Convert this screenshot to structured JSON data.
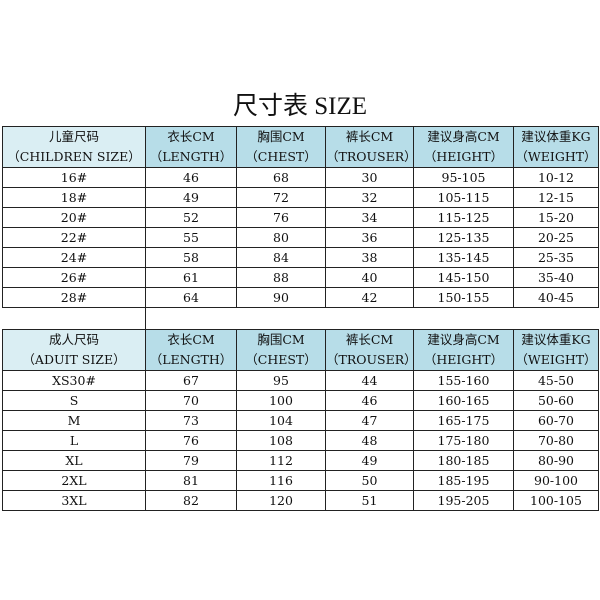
{
  "title": "尺寸表 SIZE",
  "columns": [
    {
      "cn": "衣长CM",
      "en": "（LENGTH）"
    },
    {
      "cn": "胸围CM",
      "en": "（CHEST）"
    },
    {
      "cn": "裤长CM",
      "en": "（TROUSER）"
    },
    {
      "cn": "建议身高CM",
      "en": "（HEIGHT）"
    },
    {
      "cn": "建议体重KG",
      "en": "（WEIGHT）"
    }
  ],
  "children": {
    "header_cn": "儿童尺码",
    "header_en": "（CHILDREN SIZE）",
    "rows": [
      [
        "16#",
        "46",
        "68",
        "30",
        "95-105",
        "10-12"
      ],
      [
        "18#",
        "49",
        "72",
        "32",
        "105-115",
        "12-15"
      ],
      [
        "20#",
        "52",
        "76",
        "34",
        "115-125",
        "15-20"
      ],
      [
        "22#",
        "55",
        "80",
        "36",
        "125-135",
        "20-25"
      ],
      [
        "24#",
        "58",
        "84",
        "38",
        "135-145",
        "25-35"
      ],
      [
        "26#",
        "61",
        "88",
        "40",
        "145-150",
        "35-40"
      ],
      [
        "28#",
        "64",
        "90",
        "42",
        "150-155",
        "40-45"
      ]
    ]
  },
  "adults": {
    "header_cn": "成人尺码",
    "header_en": "（ADUIT SIZE）",
    "rows": [
      [
        "XS30#",
        "67",
        "95",
        "44",
        "155-160",
        "45-50"
      ],
      [
        "S",
        "70",
        "100",
        "46",
        "160-165",
        "50-60"
      ],
      [
        "M",
        "73",
        "104",
        "47",
        "165-175",
        "60-70"
      ],
      [
        "L",
        "76",
        "108",
        "48",
        "175-180",
        "70-80"
      ],
      [
        "XL",
        "79",
        "112",
        "49",
        "180-185",
        "80-90"
      ],
      [
        "2XL",
        "81",
        "116",
        "50",
        "185-195",
        "90-100"
      ],
      [
        "3XL",
        "82",
        "120",
        "51",
        "195-205",
        "100-105"
      ]
    ]
  }
}
